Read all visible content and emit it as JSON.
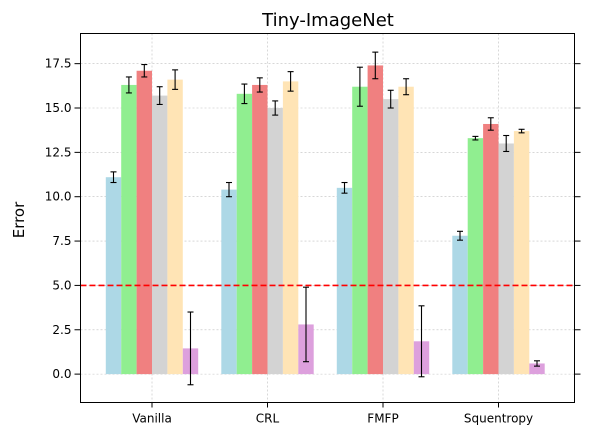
{
  "chart_data": {
    "type": "bar",
    "title": "Tiny-ImageNet",
    "xlabel": "",
    "ylabel": "Error",
    "ylim": [
      -1.6,
      19.2
    ],
    "yticks": [
      "0.0",
      "2.5",
      "5.0",
      "7.5",
      "10.0",
      "12.5",
      "15.0",
      "17.5"
    ],
    "categories": [
      "Vanilla",
      "CRL",
      "FMFP",
      "Squentropy"
    ],
    "grid": true,
    "legend": "none",
    "reference_line": {
      "y": 5.0,
      "color": "#ff0000",
      "style": "dashed"
    },
    "series": [
      {
        "color": "#add8e6",
        "values": [
          11.1,
          10.4,
          10.5,
          7.8
        ],
        "errors": [
          0.3,
          0.4,
          0.3,
          0.25
        ]
      },
      {
        "color": "#90ee90",
        "values": [
          16.3,
          15.8,
          16.2,
          13.3
        ],
        "errors": [
          0.45,
          0.55,
          1.1,
          0.1
        ]
      },
      {
        "color": "#f08080",
        "values": [
          17.1,
          16.3,
          17.4,
          14.1
        ],
        "errors": [
          0.35,
          0.4,
          0.75,
          0.35
        ]
      },
      {
        "color": "#d3d3d3",
        "values": [
          15.7,
          15.0,
          15.5,
          13.0
        ],
        "errors": [
          0.5,
          0.4,
          0.5,
          0.45
        ]
      },
      {
        "color": "#ffe4b5",
        "values": [
          16.6,
          16.5,
          16.2,
          13.7
        ],
        "errors": [
          0.55,
          0.55,
          0.45,
          0.1
        ]
      },
      {
        "color": "#dda0dd",
        "values": [
          1.45,
          2.8,
          1.85,
          0.6
        ],
        "errors": [
          2.05,
          2.1,
          2.0,
          0.15
        ]
      }
    ]
  }
}
